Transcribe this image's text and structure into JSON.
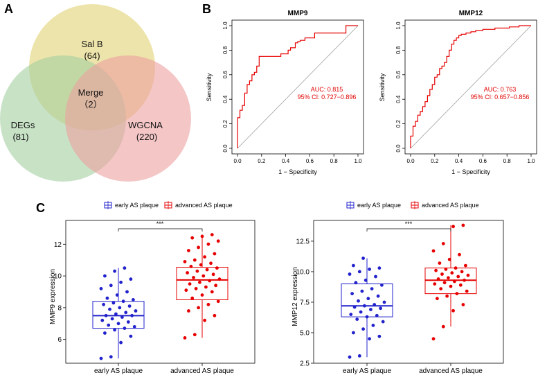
{
  "panels": {
    "a": "A",
    "b": "B",
    "c": "C"
  },
  "colors": {
    "venn_top": "#e6d888",
    "venn_left": "#a4cfa0",
    "venn_right": "#eda0a0",
    "roc": "#e60000",
    "early": "#2222cc",
    "advanced": "#e60000"
  },
  "chart_data": [
    {
      "type": "venn",
      "sets": [
        {
          "name": "Sal B",
          "count": "(64)"
        },
        {
          "name": "DEGs",
          "count": "(81)"
        },
        {
          "name": "WGCNA",
          "count": "(220)"
        }
      ],
      "intersection": {
        "name": "Merge",
        "count": "（2）"
      }
    },
    {
      "type": "line",
      "title": "MMP9",
      "xlabel": "1 − Specificity",
      "ylabel": "Sensitivity",
      "xlim": [
        0,
        1
      ],
      "ylim": [
        0,
        1
      ],
      "ticks": [
        "0.0",
        "0.2",
        "0.4",
        "0.6",
        "0.8",
        "1.0"
      ],
      "auc_text": "AUC: 0.815",
      "ci_text": "95% CI: 0.727−0.896",
      "x": [
        0,
        0,
        0.02,
        0.02,
        0.04,
        0.04,
        0.06,
        0.06,
        0.08,
        0.08,
        0.1,
        0.1,
        0.12,
        0.12,
        0.14,
        0.14,
        0.16,
        0.16,
        0.18,
        0.18,
        0.36,
        0.36,
        0.42,
        0.42,
        0.44,
        0.44,
        0.48,
        0.48,
        0.5,
        0.5,
        0.52,
        0.52,
        0.56,
        0.56,
        0.64,
        0.64,
        0.9,
        0.9,
        1.0
      ],
      "y": [
        0,
        0.25,
        0.25,
        0.31,
        0.31,
        0.35,
        0.35,
        0.45,
        0.45,
        0.52,
        0.52,
        0.55,
        0.55,
        0.6,
        0.6,
        0.62,
        0.62,
        0.67,
        0.67,
        0.75,
        0.75,
        0.77,
        0.77,
        0.8,
        0.8,
        0.82,
        0.82,
        0.86,
        0.86,
        0.87,
        0.87,
        0.88,
        0.88,
        0.9,
        0.9,
        0.94,
        0.94,
        1.0,
        1.0
      ]
    },
    {
      "type": "line",
      "title": "MMP12",
      "xlabel": "1 − Specificity",
      "ylabel": "Sensitivity",
      "xlim": [
        0,
        1
      ],
      "ylim": [
        0,
        1
      ],
      "ticks": [
        "0.0",
        "0.2",
        "0.4",
        "0.6",
        "0.8",
        "1.0"
      ],
      "auc_text": "AUC: 0.763",
      "ci_text": "95% CI: 0.657−0.856",
      "x": [
        0,
        0,
        0.02,
        0.02,
        0.04,
        0.04,
        0.06,
        0.06,
        0.08,
        0.08,
        0.1,
        0.1,
        0.12,
        0.12,
        0.14,
        0.14,
        0.16,
        0.16,
        0.18,
        0.18,
        0.2,
        0.2,
        0.22,
        0.22,
        0.24,
        0.24,
        0.26,
        0.26,
        0.28,
        0.28,
        0.3,
        0.3,
        0.32,
        0.32,
        0.34,
        0.34,
        0.36,
        0.36,
        0.38,
        0.38,
        0.4,
        0.4,
        0.42,
        0.42,
        0.46,
        0.46,
        0.5,
        0.5,
        0.54,
        0.54,
        0.6,
        0.6,
        0.7,
        0.7,
        0.82,
        0.82,
        0.9,
        0.9,
        1.0
      ],
      "y": [
        0,
        0.1,
        0.1,
        0.18,
        0.18,
        0.22,
        0.22,
        0.27,
        0.27,
        0.3,
        0.3,
        0.34,
        0.34,
        0.38,
        0.38,
        0.43,
        0.43,
        0.48,
        0.48,
        0.52,
        0.52,
        0.58,
        0.58,
        0.6,
        0.6,
        0.65,
        0.65,
        0.67,
        0.67,
        0.7,
        0.7,
        0.75,
        0.75,
        0.8,
        0.8,
        0.85,
        0.85,
        0.88,
        0.88,
        0.9,
        0.9,
        0.92,
        0.92,
        0.93,
        0.93,
        0.94,
        0.94,
        0.95,
        0.95,
        0.96,
        0.96,
        0.97,
        0.97,
        0.98,
        0.98,
        0.99,
        0.99,
        1.0,
        1.0
      ]
    },
    {
      "type": "box",
      "ylabel": "MMP9 expression",
      "ylim": [
        4.5,
        13.5
      ],
      "yticks": [
        "6",
        "8",
        "10",
        "12"
      ],
      "ytick_values": [
        6,
        8,
        10,
        12
      ],
      "categories": [
        "early AS plaque",
        "advanced AS plaque"
      ],
      "legend": [
        "early AS plaque",
        "advanced AS plaque"
      ],
      "significance": "***",
      "boxes": [
        {
          "name": "early AS plaque",
          "min": 4.8,
          "q1": 6.7,
          "median": 7.5,
          "q3": 8.4,
          "max": 10.5
        },
        {
          "name": "advanced AS plaque",
          "min": 6.1,
          "q1": 8.5,
          "median": 9.75,
          "q3": 10.55,
          "max": 12.6
        }
      ],
      "points": [
        [
          4.8,
          4.9,
          5.8,
          6.2,
          6.4,
          6.6,
          6.7,
          6.8,
          6.9,
          7.0,
          7.1,
          7.2,
          7.3,
          7.4,
          7.5,
          7.5,
          7.6,
          7.7,
          7.8,
          7.9,
          8.0,
          8.1,
          8.2,
          8.3,
          8.4,
          8.5,
          8.6,
          8.8,
          9.0,
          9.2,
          9.4,
          9.6,
          9.8,
          10.0,
          10.3,
          10.5
        ],
        [
          6.1,
          6.3,
          7.2,
          7.5,
          7.8,
          8.0,
          8.2,
          8.4,
          8.6,
          8.8,
          9.0,
          9.1,
          9.2,
          9.3,
          9.4,
          9.5,
          9.6,
          9.7,
          9.8,
          9.9,
          10.0,
          10.1,
          10.2,
          10.3,
          10.4,
          10.5,
          10.6,
          10.7,
          10.8,
          10.9,
          11.0,
          11.2,
          11.4,
          11.6,
          11.8,
          12.0,
          12.2,
          12.4,
          12.5,
          12.6
        ]
      ]
    },
    {
      "type": "box",
      "ylabel": "MMP12 expression",
      "ylim": [
        2.5,
        14.2
      ],
      "yticks": [
        "2.5",
        "5.0",
        "7.5",
        "10.0",
        "12.5"
      ],
      "ytick_values": [
        2.5,
        5.0,
        7.5,
        10.0,
        12.5
      ],
      "categories": [
        "early AS plaque",
        "advanced AS plaque"
      ],
      "legend": [
        "early AS plaque",
        "advanced AS plaque"
      ],
      "significance": "***",
      "boxes": [
        {
          "name": "early AS plaque",
          "min": 3.0,
          "q1": 6.3,
          "median": 7.2,
          "q3": 9.0,
          "max": 11.1
        },
        {
          "name": "advanced AS plaque",
          "min": 5.5,
          "q1": 8.2,
          "median": 9.3,
          "q3": 10.3,
          "max": 13.8
        }
      ],
      "points": [
        [
          3.0,
          3.1,
          4.5,
          4.7,
          5.0,
          5.3,
          5.6,
          5.9,
          6.1,
          6.3,
          6.4,
          6.5,
          6.7,
          6.9,
          7.0,
          7.1,
          7.2,
          7.3,
          7.5,
          7.6,
          7.8,
          8.0,
          8.2,
          8.4,
          8.6,
          8.9,
          9.1,
          9.3,
          9.6,
          9.8,
          10.0,
          10.2,
          10.3,
          10.5,
          11.1
        ],
        [
          4.5,
          5.5,
          6.8,
          7.3,
          7.8,
          8.0,
          8.2,
          8.4,
          8.6,
          8.8,
          8.9,
          9.0,
          9.1,
          9.2,
          9.3,
          9.4,
          9.5,
          9.6,
          9.7,
          9.8,
          9.9,
          10.0,
          10.1,
          10.2,
          10.3,
          10.5,
          10.7,
          11.0,
          11.4,
          11.7,
          12.3,
          13.7,
          13.8
        ]
      ]
    }
  ]
}
